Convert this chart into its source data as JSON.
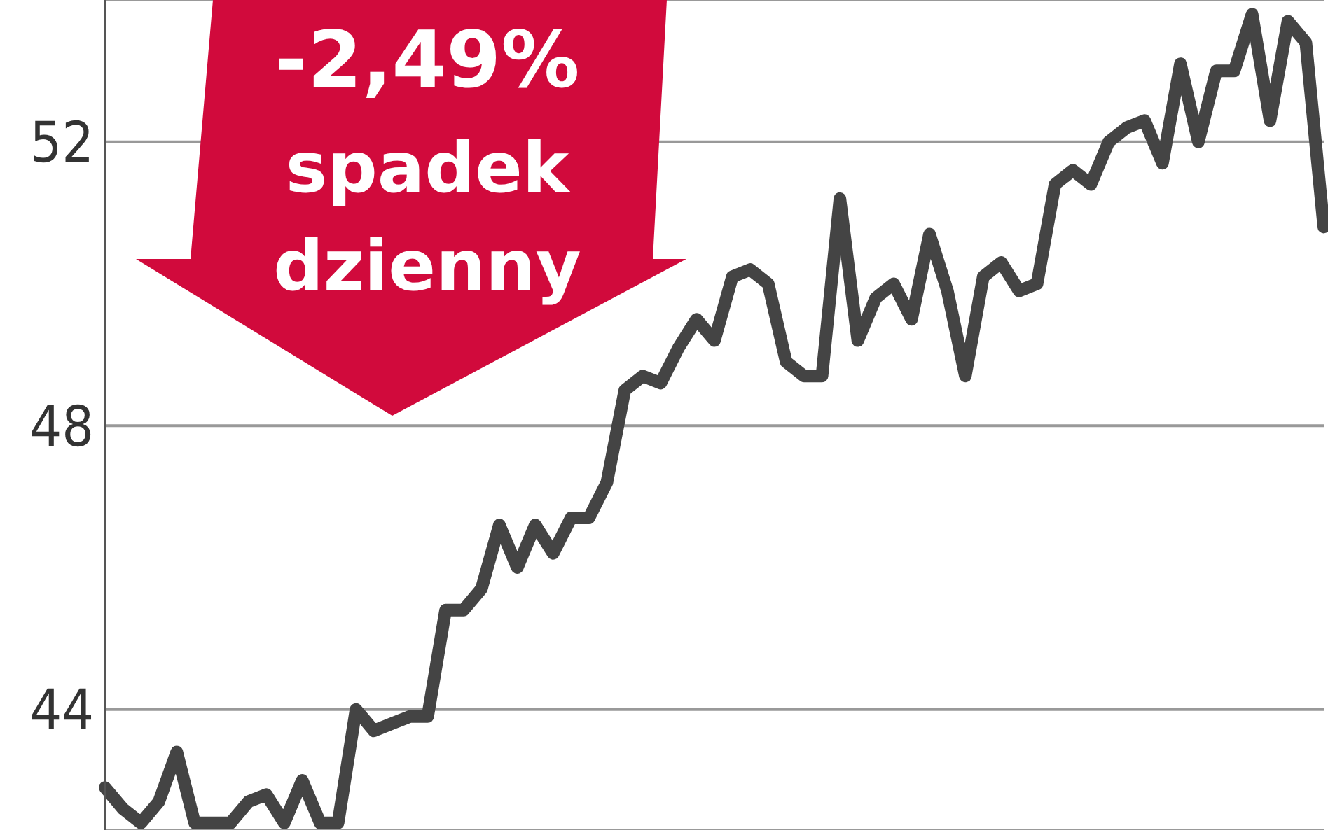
{
  "chart_data": {
    "type": "line",
    "annotations": [
      "-2,49%",
      "spadek",
      "dzienny"
    ],
    "categories": [
      null,
      null,
      null,
      null,
      null,
      null,
      null,
      null,
      null,
      null,
      null,
      null,
      null,
      null,
      null,
      null,
      null,
      null,
      null,
      null,
      null,
      null,
      null,
      null,
      null,
      null,
      null,
      null,
      null,
      null,
      null,
      null,
      null,
      null,
      null,
      null,
      null,
      null,
      null,
      null,
      null,
      null,
      null,
      null,
      null,
      null,
      null,
      null,
      null,
      null,
      null,
      null,
      null,
      null,
      null,
      null,
      null,
      null,
      null,
      null,
      null,
      null,
      null,
      null,
      null,
      null,
      null,
      null,
      null
    ],
    "series": [
      {
        "color": "#444444",
        "values": [
          42.9,
          42.6,
          42.4,
          42.7,
          43.4,
          42.4,
          42.4,
          42.4,
          42.7,
          42.8,
          42.4,
          43.0,
          42.4,
          42.4,
          44.0,
          43.7,
          43.8,
          43.9,
          43.9,
          45.4,
          45.4,
          45.7,
          46.6,
          46.0,
          46.6,
          46.2,
          46.7,
          46.7,
          47.2,
          48.5,
          48.7,
          48.6,
          49.1,
          49.5,
          49.2,
          50.1,
          50.2,
          50.0,
          48.9,
          48.7,
          48.7,
          51.2,
          49.2,
          49.8,
          50.0,
          49.5,
          50.7,
          49.9,
          48.7,
          50.1,
          50.3,
          49.9,
          50.0,
          51.4,
          51.6,
          51.4,
          52.0,
          52.2,
          52.3,
          51.7,
          53.1,
          52.0,
          53.0,
          53.0,
          53.8,
          52.3,
          53.7,
          53.4,
          50.8
        ]
      }
    ],
    "ylim": [
      42.3,
      54
    ],
    "yticks": [
      44,
      48,
      52
    ],
    "grid": "y",
    "tick_labels": "y"
  }
}
